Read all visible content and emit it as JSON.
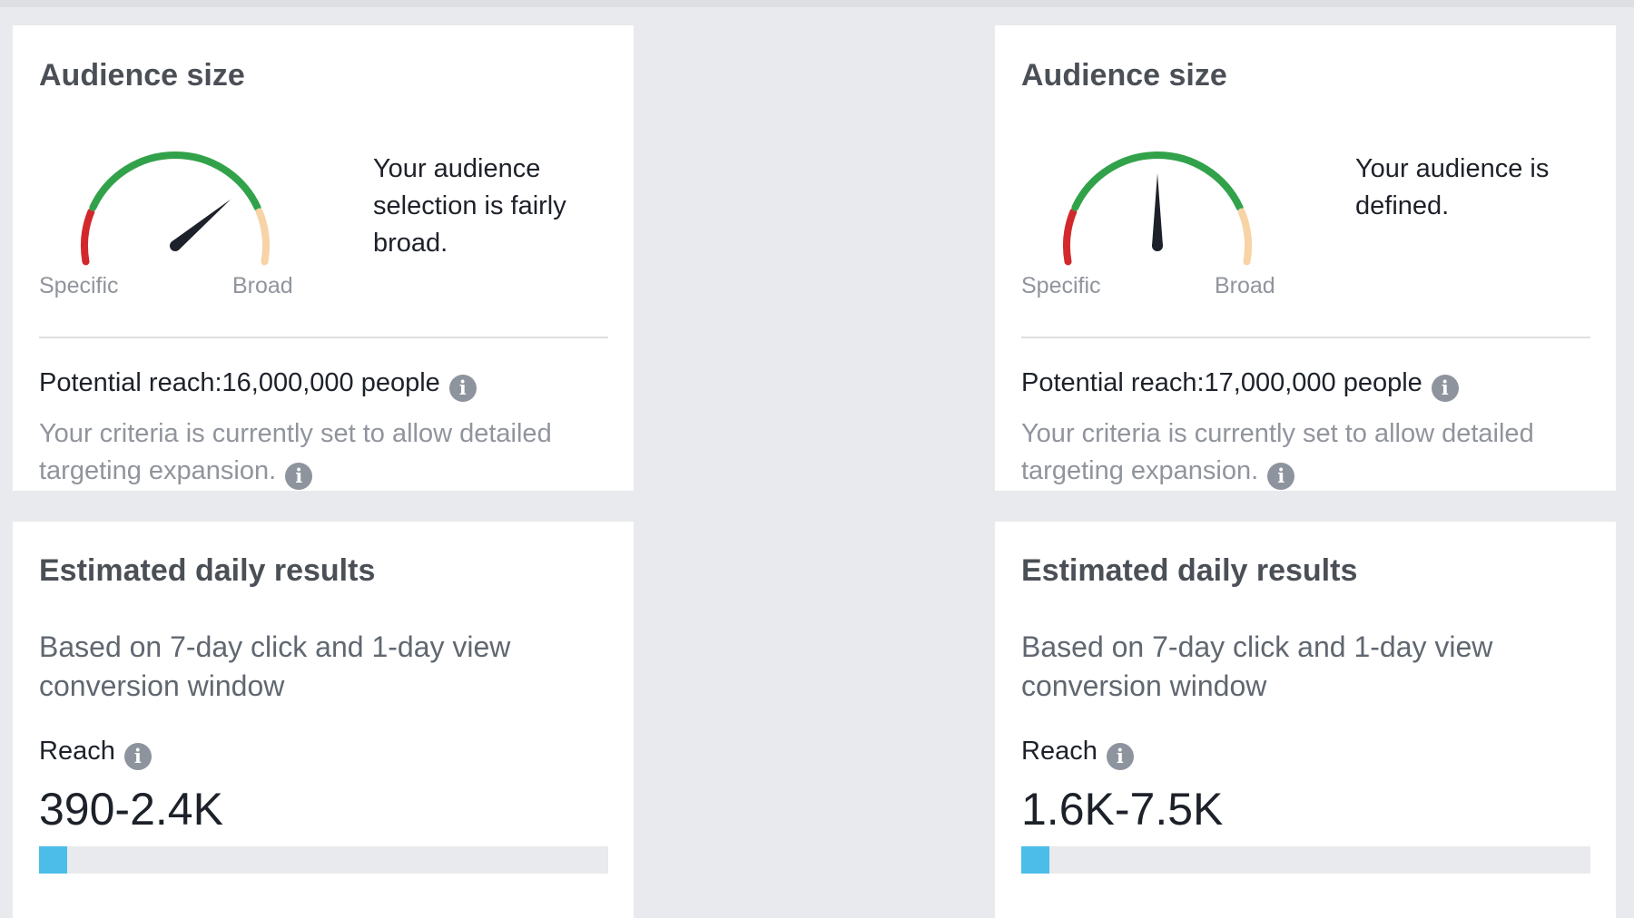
{
  "colors": {
    "background": "#e9eaed",
    "card": "#ffffff",
    "gauge_red": "#d2282c",
    "gauge_green": "#32a24a",
    "gauge_peach": "#f7d3a6",
    "needle": "#1d2129",
    "bar_fill": "#4cbde9",
    "bar_track": "#e9eaed",
    "info_icon": "#8d949e"
  },
  "panels": [
    {
      "audience": {
        "title": "Audience size",
        "gauge": {
          "left_label": "Specific",
          "right_label": "Broad",
          "needle_fraction": 0.75
        },
        "status_text": "Your audience selection is fairly broad.",
        "potential_reach": "Potential reach:16,000,000 people",
        "criteria_text": "Your criteria is currently set to allow detailed targeting expansion.",
        "info_icon": "info-icon"
      },
      "estimated": {
        "title": "Estimated daily results",
        "note": "Based on 7-day click and 1-day view conversion window",
        "reach_label": "Reach",
        "reach_value": "390-2.4K",
        "reach_bar_fraction": 0.05
      }
    },
    {
      "audience": {
        "title": "Audience size",
        "gauge": {
          "left_label": "Specific",
          "right_label": "Broad",
          "needle_fraction": 0.5
        },
        "status_text": "Your audience is defined.",
        "potential_reach": "Potential reach:17,000,000 people",
        "criteria_text": "Your criteria is currently set to allow detailed targeting expansion.",
        "info_icon": "info-icon"
      },
      "estimated": {
        "title": "Estimated daily results",
        "note": "Based on 7-day click and 1-day view conversion window",
        "reach_label": "Reach",
        "reach_value": "1.6K-7.5K",
        "reach_bar_fraction": 0.05
      }
    }
  ]
}
